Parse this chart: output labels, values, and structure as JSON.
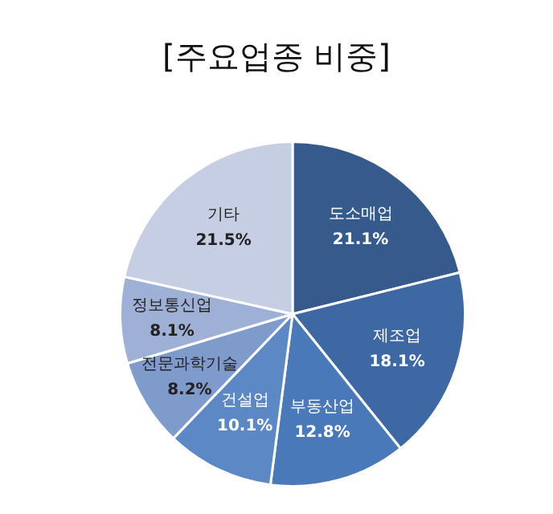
{
  "chart_data": {
    "type": "pie",
    "title": "[주요업종 비중]",
    "categories": [
      "도소매업",
      "제조업",
      "부동산업",
      "건설업",
      "전문과학기술",
      "정보통신업",
      "기타"
    ],
    "values": [
      21.1,
      18.1,
      12.8,
      10.1,
      8.2,
      8.1,
      21.5
    ],
    "value_labels": [
      "21.1%",
      "18.1%",
      "12.8%",
      "10.1%",
      "8.2%",
      "8.1%",
      "21.5%"
    ],
    "colors": [
      "#375a8c",
      "#3e68a4",
      "#4a79b9",
      "#5c88c6",
      "#7f9bcb",
      "#9eb0d6",
      "#c5cee3"
    ]
  }
}
